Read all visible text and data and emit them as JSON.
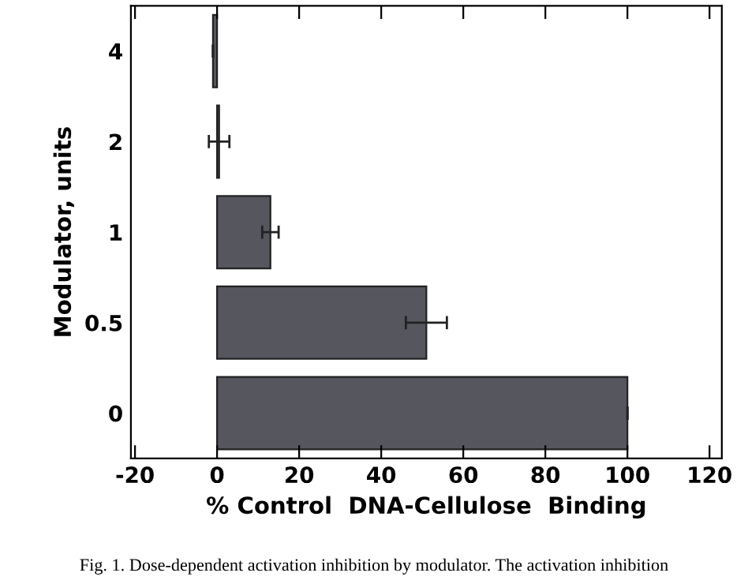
{
  "chart_data": {
    "type": "bar",
    "orientation": "horizontal",
    "categories": [
      "4",
      "2",
      "1",
      "0.5",
      "0"
    ],
    "values": [
      -1,
      0.5,
      13,
      51,
      100
    ],
    "errors": [
      null,
      2.5,
      2,
      5,
      null
    ],
    "color": "#55565e",
    "xlabel": "% Control  DNA-Cellulose  Binding",
    "ylabel": "Modulator, units",
    "xlim": [
      -21,
      123
    ],
    "xticks": [
      -20,
      0,
      20,
      40,
      60,
      80,
      100,
      120
    ],
    "grid": false,
    "annotations": [
      "Fig. 1. Dose-dependent activation inhibition by modulator. The activation inhibition"
    ]
  }
}
